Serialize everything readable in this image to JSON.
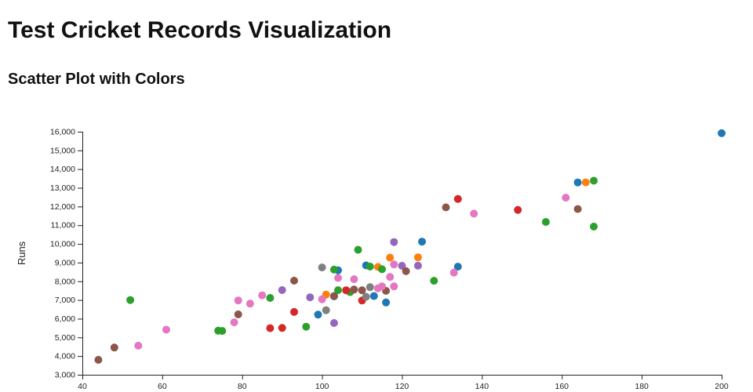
{
  "chart_data": {
    "type": "scatter",
    "title": "Test Cricket Records Visualization",
    "subtitle": "Scatter Plot with Colors",
    "xlabel": "",
    "ylabel": "Runs",
    "xlim": [
      40,
      200
    ],
    "ylim": [
      3000,
      16000
    ],
    "x_ticks": [
      40,
      60,
      80,
      100,
      120,
      140,
      160,
      180,
      200
    ],
    "x_tick_labels": [
      "40",
      "60",
      "80",
      "100",
      "120",
      "140",
      "160",
      "180",
      "200"
    ],
    "y_ticks": [
      3000,
      4000,
      5000,
      6000,
      7000,
      8000,
      9000,
      10000,
      11000,
      12000,
      13000,
      14000,
      15000,
      16000
    ],
    "y_tick_labels": [
      "3,000",
      "4,000",
      "5,000",
      "6,000",
      "7,000",
      "8,000",
      "9,000",
      "10,000",
      "11,000",
      "12,000",
      "13,000",
      "14,000",
      "15,000",
      "16,000"
    ],
    "grid": false,
    "legend": false,
    "point_radius": 5,
    "axis_color": "#222222",
    "series": [
      {
        "name": "blue",
        "color": "#1f77b4",
        "points": [
          [
            200,
            15921
          ],
          [
            164,
            13288
          ],
          [
            134,
            8781
          ],
          [
            125,
            10122
          ],
          [
            111,
            8848
          ],
          [
            104,
            8586
          ],
          [
            113,
            7212
          ],
          [
            116,
            6868
          ],
          [
            99,
            6215
          ],
          [
            103,
            7195
          ]
        ]
      },
      {
        "name": "orange",
        "color": "#ff7f0e",
        "points": [
          [
            166,
            13289
          ],
          [
            124,
            9282
          ],
          [
            117,
            9265
          ],
          [
            114,
            8765
          ],
          [
            101,
            7289
          ]
        ]
      },
      {
        "name": "green",
        "color": "#2ca02c",
        "points": [
          [
            168,
            13378
          ],
          [
            168,
            10927
          ],
          [
            156,
            11174
          ],
          [
            109,
            9685
          ],
          [
            112,
            8786
          ],
          [
            115,
            8643
          ],
          [
            103,
            8625
          ],
          [
            128,
            8029
          ],
          [
            107,
            7422
          ],
          [
            104,
            7525
          ],
          [
            87,
            7110
          ],
          [
            52,
            6996
          ],
          [
            96,
            5570
          ],
          [
            74,
            5357
          ],
          [
            75,
            5345
          ]
        ]
      },
      {
        "name": "red",
        "color": "#d62728",
        "points": [
          [
            134,
            12400
          ],
          [
            149,
            11814
          ],
          [
            110,
            6973
          ],
          [
            93,
            6361
          ],
          [
            87,
            5492
          ],
          [
            90,
            5502
          ],
          [
            106,
            7521
          ]
        ]
      },
      {
        "name": "purple",
        "color": "#9467bd",
        "points": [
          [
            118,
            10099
          ],
          [
            124,
            8832
          ],
          [
            120,
            8830
          ],
          [
            90,
            7530
          ],
          [
            97,
            7142
          ],
          [
            103,
            5768
          ]
        ]
      },
      {
        "name": "brown",
        "color": "#8c564b",
        "points": [
          [
            131,
            11953
          ],
          [
            164,
            11867
          ],
          [
            121,
            8540
          ],
          [
            93,
            8032
          ],
          [
            108,
            7558
          ],
          [
            110,
            7515
          ],
          [
            116,
            7487
          ],
          [
            103,
            7214
          ],
          [
            79,
            6227
          ],
          [
            48,
            4455
          ],
          [
            44,
            3798
          ]
        ]
      },
      {
        "name": "pink",
        "color": "#e377c2",
        "points": [
          [
            161,
            12472
          ],
          [
            138,
            11617
          ],
          [
            118,
            8900
          ],
          [
            133,
            8463
          ],
          [
            117,
            8231
          ],
          [
            104,
            8181
          ],
          [
            108,
            8114
          ],
          [
            115,
            7728
          ],
          [
            118,
            7727
          ],
          [
            114,
            7624
          ],
          [
            100,
            7037
          ],
          [
            85,
            7249
          ],
          [
            79,
            6971
          ],
          [
            82,
            6806
          ],
          [
            78,
            5807
          ],
          [
            61,
            5410
          ],
          [
            54,
            4555
          ]
        ]
      },
      {
        "name": "gray",
        "color": "#7f7f7f",
        "points": [
          [
            100,
            8743
          ],
          [
            112,
            7683
          ],
          [
            111,
            7172
          ],
          [
            101,
            6453
          ]
        ]
      }
    ]
  }
}
